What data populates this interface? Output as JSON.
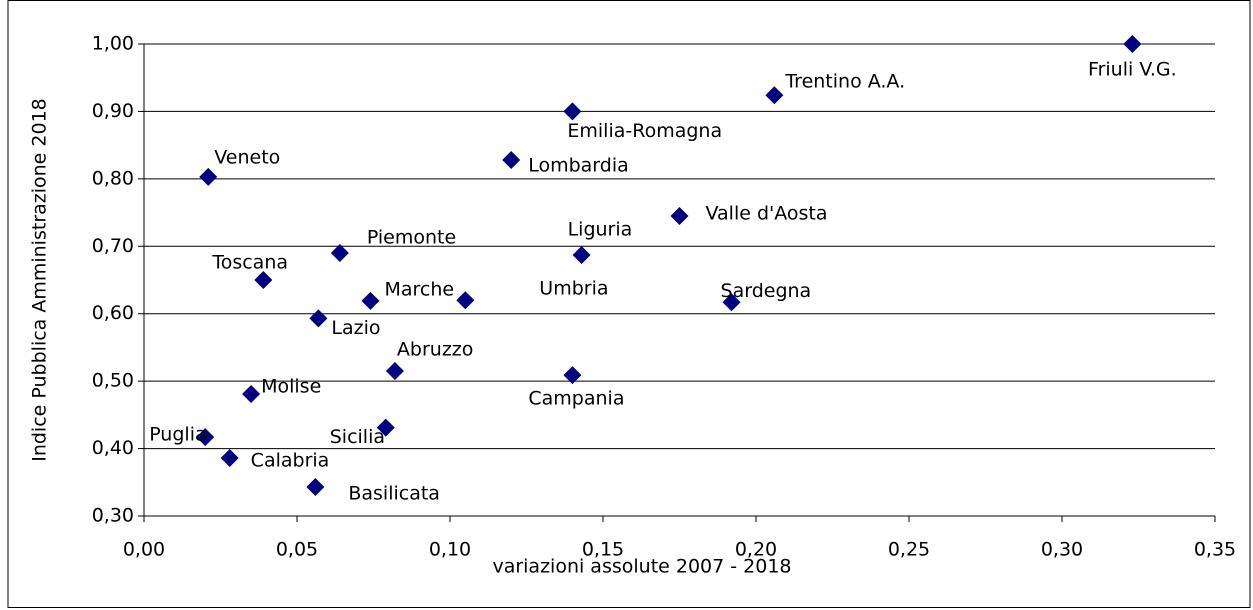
{
  "chart_data": {
    "type": "scatter",
    "xlabel": "variazioni assolute 2007 - 2018",
    "ylabel": "Indice Pubblica Amministrazione 2018",
    "color": "#000080",
    "grid": true,
    "points": [
      {
        "label": "Friuli V.G.",
        "x": 0.323,
        "y": 1.0
      },
      {
        "label": "Trentino A.A.",
        "x": 0.206,
        "y": 0.924
      },
      {
        "label": "Emilia-Romagna",
        "x": 0.14,
        "y": 0.9
      },
      {
        "label": "Lombardia",
        "x": 0.12,
        "y": 0.828
      },
      {
        "label": "Veneto",
        "x": 0.021,
        "y": 0.803
      },
      {
        "label": "Valle d'Aosta",
        "x": 0.175,
        "y": 0.745
      },
      {
        "label": "Piemonte",
        "x": 0.064,
        "y": 0.69
      },
      {
        "label": "Liguria",
        "x": 0.143,
        "y": 0.687
      },
      {
        "label": "Toscana",
        "x": 0.039,
        "y": 0.65
      },
      {
        "label": "Marche",
        "x": 0.074,
        "y": 0.619
      },
      {
        "label": "Umbria",
        "x": 0.105,
        "y": 0.62
      },
      {
        "label": "Sardegna",
        "x": 0.192,
        "y": 0.617
      },
      {
        "label": "Lazio",
        "x": 0.057,
        "y": 0.593
      },
      {
        "label": "Abruzzo",
        "x": 0.082,
        "y": 0.515
      },
      {
        "label": "Campania",
        "x": 0.14,
        "y": 0.509
      },
      {
        "label": "Molise",
        "x": 0.035,
        "y": 0.481
      },
      {
        "label": "Sicilia",
        "x": 0.079,
        "y": 0.431
      },
      {
        "label": "Puglia",
        "x": 0.02,
        "y": 0.417
      },
      {
        "label": "Calabria",
        "x": 0.028,
        "y": 0.386
      },
      {
        "label": "Basilicata",
        "x": 0.056,
        "y": 0.343
      }
    ],
    "xlim": [
      0,
      0.35
    ],
    "xticks": [
      {
        "value": 0,
        "label": "0,00"
      },
      {
        "value": 0.05,
        "label": "0,05"
      },
      {
        "value": 0.1,
        "label": "0,10"
      },
      {
        "value": 0.15,
        "label": "0,15"
      },
      {
        "value": 0.2,
        "label": "0,20"
      },
      {
        "value": 0.25,
        "label": "0,25"
      },
      {
        "value": 0.3,
        "label": "0,30"
      },
      {
        "value": 0.35,
        "label": "0,35"
      }
    ],
    "ylim": [
      0.3,
      1.0
    ],
    "yticks": [
      {
        "value": 0.3,
        "label": "0,30"
      },
      {
        "value": 0.4,
        "label": "0,40"
      },
      {
        "value": 0.5,
        "label": "0,50"
      },
      {
        "value": 0.6,
        "label": "0,60"
      },
      {
        "value": 0.7,
        "label": "0,70"
      },
      {
        "value": 0.8,
        "label": "0,80"
      },
      {
        "value": 0.9,
        "label": "0,90"
      },
      {
        "value": 1.0,
        "label": "1,00"
      }
    ]
  }
}
